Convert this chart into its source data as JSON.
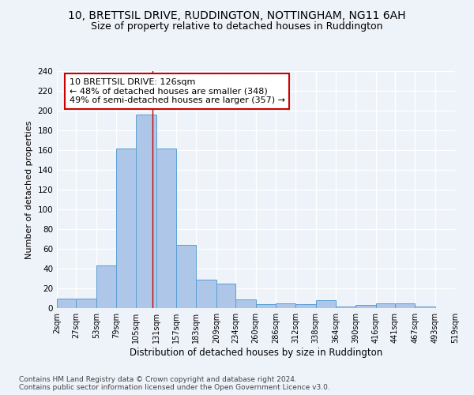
{
  "title1": "10, BRETTSIL DRIVE, RUDDINGTON, NOTTINGHAM, NG11 6AH",
  "title2": "Size of property relative to detached houses in Ruddington",
  "xlabel": "Distribution of detached houses by size in Ruddington",
  "ylabel": "Number of detached properties",
  "bin_labels": [
    "2sqm",
    "27sqm",
    "53sqm",
    "79sqm",
    "105sqm",
    "131sqm",
    "157sqm",
    "183sqm",
    "209sqm",
    "234sqm",
    "260sqm",
    "286sqm",
    "312sqm",
    "338sqm",
    "364sqm",
    "390sqm",
    "416sqm",
    "441sqm",
    "467sqm",
    "493sqm",
    "519sqm"
  ],
  "bin_edges": [
    2,
    27,
    53,
    79,
    105,
    131,
    157,
    183,
    209,
    234,
    260,
    286,
    312,
    338,
    364,
    390,
    416,
    441,
    467,
    493,
    519
  ],
  "counts": [
    10,
    10,
    43,
    162,
    196,
    162,
    64,
    29,
    25,
    9,
    4,
    5,
    4,
    8,
    2,
    3,
    5,
    5,
    2,
    0
  ],
  "bar_color": "#aec6e8",
  "bar_edge_color": "#5a9fd4",
  "property_line_x": 126,
  "property_line_color": "#cc0000",
  "annotation_line1": "10 BRETTSIL DRIVE: 126sqm",
  "annotation_line2": "← 48% of detached houses are smaller (348)",
  "annotation_line3": "49% of semi-detached houses are larger (357) →",
  "annotation_box_color": "#ffffff",
  "annotation_box_edge_color": "#cc0000",
  "annotation_fontsize": 8,
  "ylim": [
    0,
    240
  ],
  "yticks": [
    0,
    20,
    40,
    60,
    80,
    100,
    120,
    140,
    160,
    180,
    200,
    220,
    240
  ],
  "footer": "Contains HM Land Registry data © Crown copyright and database right 2024.\nContains public sector information licensed under the Open Government Licence v3.0.",
  "bg_color": "#eef2f9",
  "grid_color": "#ffffff",
  "title1_fontsize": 10,
  "title2_fontsize": 9,
  "ylabel_fontsize": 8,
  "xlabel_fontsize": 8.5,
  "tick_fontsize": 7,
  "footer_fontsize": 6.5
}
